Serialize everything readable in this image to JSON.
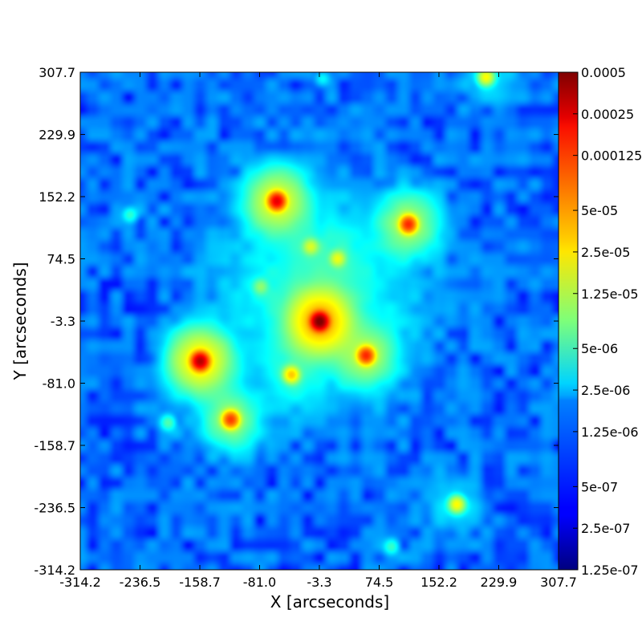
{
  "chart_data": {
    "type": "heatmap",
    "title": "",
    "xlabel": "X [arcseconds]",
    "ylabel": "Y [arcseconds]",
    "x_ticks": [
      "-314.2",
      "-236.5",
      "-158.7",
      "-81.0",
      "-3.3",
      "74.5",
      "152.2",
      "229.9",
      "307.7"
    ],
    "y_ticks": [
      "307.7",
      "229.9",
      "152.2",
      "74.5",
      "-3.3",
      "-81.0",
      "-158.7",
      "-236.5",
      "-314.2"
    ],
    "xlim": [
      -314.2,
      307.7
    ],
    "ylim": [
      -314.2,
      307.7
    ],
    "colorbar": {
      "scale": "log",
      "colormap": "jet",
      "range": [
        1.25e-07,
        0.0005
      ],
      "tick_labels": [
        "0.0005",
        "0.00025",
        "0.000125",
        "5e-05",
        "2.5e-05",
        "1.25e-05",
        "5e-06",
        "2.5e-06",
        "1.25e-06",
        "5e-07",
        "2.5e-07",
        "1.25e-07"
      ],
      "tick_values": [
        0.0005,
        0.00025,
        0.000125,
        5e-05,
        2.5e-05,
        1.25e-05,
        5e-06,
        2.5e-06,
        1.25e-06,
        5e-07,
        2.5e-07,
        1.25e-07
      ]
    },
    "background_level": 8e-07,
    "peaks": [
      {
        "x": -3.3,
        "y": -3.3,
        "value": 0.0005
      },
      {
        "x": -158.7,
        "y": -53.0,
        "value": 0.0003
      },
      {
        "x": -59.0,
        "y": 147.0,
        "value": 0.0002
      },
      {
        "x": 112.0,
        "y": 118.0,
        "value": 0.00012
      },
      {
        "x": 57.0,
        "y": -46.0,
        "value": 0.00012
      },
      {
        "x": -119.0,
        "y": -126.0,
        "value": 0.0001
      },
      {
        "x": -40.0,
        "y": -70.0,
        "value": 3e-05
      },
      {
        "x": 175.0,
        "y": -232.0,
        "value": 2e-05
      },
      {
        "x": 213.0,
        "y": 302.0,
        "value": 2e-05
      },
      {
        "x": 20.0,
        "y": 75.0,
        "value": 1.5e-05
      },
      {
        "x": -15.0,
        "y": 90.0,
        "value": 1.2e-05
      },
      {
        "x": -80.0,
        "y": 40.0,
        "value": 6e-06
      },
      {
        "x": -200.0,
        "y": -130.0,
        "value": 4e-06
      },
      {
        "x": -250.0,
        "y": 130.0,
        "value": 3e-06
      },
      {
        "x": 90.0,
        "y": -285.0,
        "value": 3e-06
      },
      {
        "x": 0.0,
        "y": 300.0,
        "value": 2e-06
      }
    ]
  },
  "colors": {
    "frame": "#000000",
    "background": "#ffffff"
  }
}
